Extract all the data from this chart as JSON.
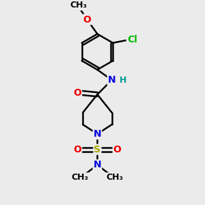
{
  "background_color": "#ebebeb",
  "bond_color": "#000000",
  "bond_width": 1.8,
  "atom_colors": {
    "C": "#000000",
    "N": "#0000dd",
    "O": "#ee0000",
    "S": "#aaaa00",
    "Cl": "#00bb00",
    "H": "#009999"
  },
  "font_size": 10,
  "fig_width": 3.0,
  "fig_height": 3.0,
  "dpi": 100,
  "xlim": [
    -1.2,
    1.5
  ],
  "ylim": [
    -2.8,
    2.8
  ]
}
